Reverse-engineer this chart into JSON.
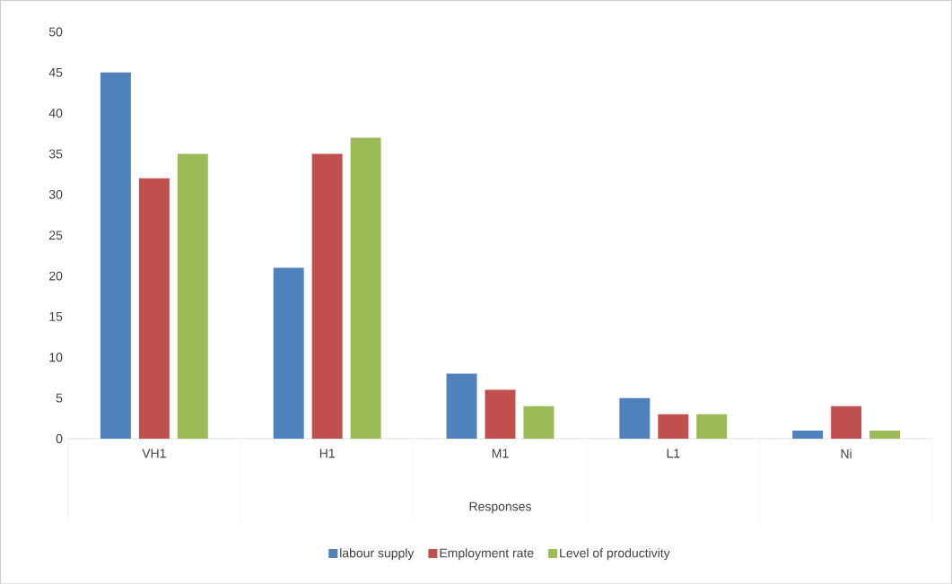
{
  "chart_data": {
    "type": "bar",
    "xlabel": "Responses",
    "categories": [
      "VH1",
      "H1",
      "M1",
      "L1",
      "Ni"
    ],
    "series": [
      {
        "name": "labour supply",
        "color": "#4f81bd",
        "values": [
          45,
          21,
          8,
          5,
          1
        ]
      },
      {
        "name": "Employment rate",
        "color": "#c0504d",
        "values": [
          32,
          35,
          6,
          3,
          4
        ]
      },
      {
        "name": "Level of productivity",
        "color": "#9bbb59",
        "values": [
          35,
          37,
          4,
          3,
          1
        ]
      }
    ],
    "ylim": [
      0,
      50
    ],
    "yticks": [
      0,
      5,
      10,
      15,
      20,
      25,
      30,
      35,
      40,
      45,
      50
    ],
    "legend": "bottom"
  }
}
